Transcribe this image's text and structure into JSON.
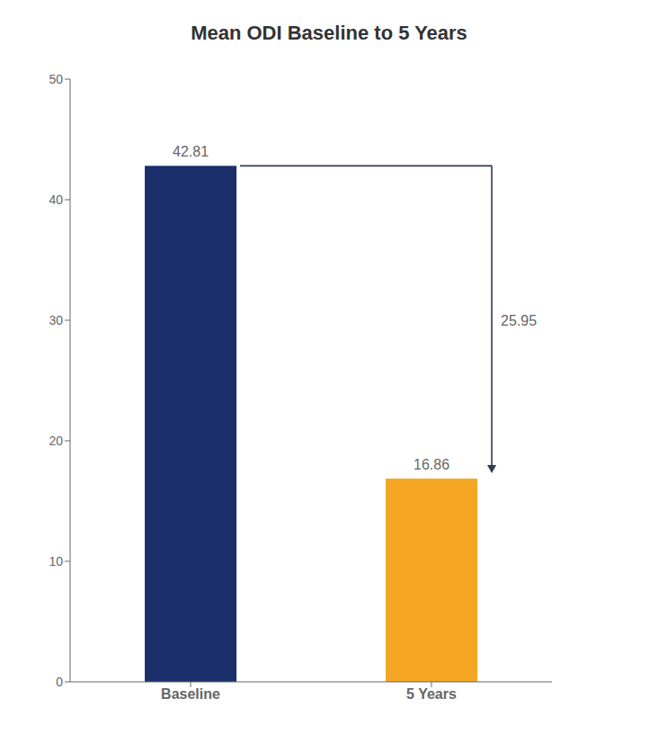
{
  "chart_data": {
    "type": "bar",
    "title": "Mean ODI Baseline to 5 Years",
    "categories": [
      "Baseline",
      "5 Years"
    ],
    "values": [
      42.81,
      16.86
    ],
    "colors": [
      "#1a2e6c",
      "#f5a623"
    ],
    "ylim": [
      0,
      50
    ],
    "yticks": [
      0,
      10,
      20,
      30,
      40,
      50
    ],
    "grid": false,
    "data_labels": true,
    "annotations": [
      "25.95"
    ]
  }
}
